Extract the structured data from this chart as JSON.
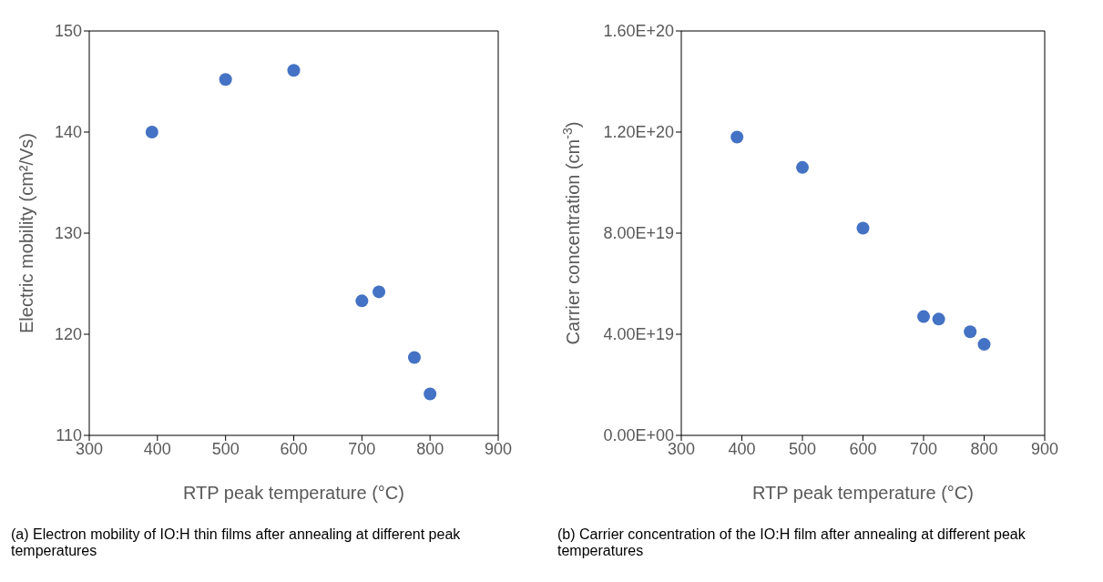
{
  "chart_data": [
    {
      "type": "scatter",
      "xlabel": "RTP peak temperature (°C)",
      "ylabel": "Electric mobility (cm²/Vs)",
      "x": [
        392,
        500,
        600,
        700,
        725,
        777,
        800
      ],
      "series": [
        {
          "color": "#4472c4",
          "values": [
            140,
            145.2,
            146.1,
            123.3,
            124.2,
            117.7,
            114.1
          ]
        }
      ],
      "xlim": [
        300,
        900
      ],
      "xticks": [
        300,
        400,
        500,
        600,
        700,
        800,
        900
      ],
      "ylim": [
        110,
        150
      ],
      "yticks": [
        110,
        120,
        130,
        140,
        150
      ],
      "marker": "circle",
      "grid": false,
      "legend": false,
      "annotations": [
        "(a) Electron mobility of IO:H thin films after annealing at different peak temperatures"
      ]
    },
    {
      "type": "scatter",
      "xlabel": "RTP peak temperature (°C)",
      "ylabel": "Carrier concentration (cm$^{-3}$)",
      "x": [
        392,
        500,
        600,
        700,
        725,
        777,
        800
      ],
      "series": [
        {
          "color": "#4472c4",
          "values": [
            1.18e+20,
            1.06e+20,
            8.2e+19,
            4.7e+19,
            4.6e+19,
            4.1e+19,
            3.6e+19
          ]
        }
      ],
      "xlim": [
        300,
        900
      ],
      "xticks": [
        300,
        400,
        500,
        600,
        700,
        800,
        900
      ],
      "ylim": [
        0,
        1.6e+20
      ],
      "yticks": [
        {
          "value": 0,
          "label": "0.00E+00"
        },
        {
          "value": 4e+19,
          "label": "4.00E+19"
        },
        {
          "value": 8e+19,
          "label": "8.00E+19"
        },
        {
          "value": 1.2e+20,
          "label": "1.20E+20"
        },
        {
          "value": 1.6e+20,
          "label": "1.60E+20"
        }
      ],
      "marker": "circle",
      "grid": false,
      "legend": false,
      "annotations": [
        "(b) Carrier concentration of the IO:H film after annealing at different peak temperatures"
      ]
    }
  ]
}
